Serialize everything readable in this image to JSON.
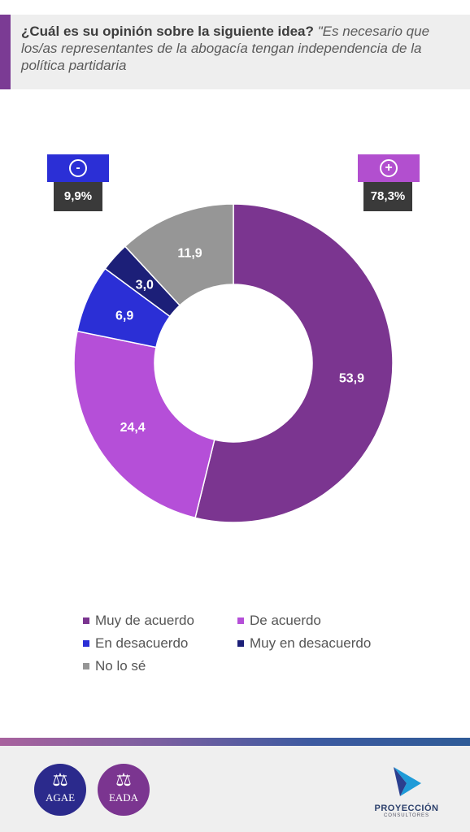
{
  "header": {
    "question": "¿Cuál es su opinión sobre la siguiente idea?",
    "idea": "\"Es necesario que los/as representantes de la abogacía tengan independencia de la política partidaria"
  },
  "badges": {
    "negative": {
      "symbol": "-",
      "value": "9,9%",
      "color": "#2b2fd6"
    },
    "positive": {
      "symbol": "+",
      "value": "78,3%",
      "color": "#b24fcf"
    }
  },
  "chart_data": {
    "type": "pie",
    "donut": true,
    "segments": [
      {
        "name": "Muy de acuerdo",
        "value": 53.9,
        "label": "53,9",
        "color": "#7b3590"
      },
      {
        "name": "De acuerdo",
        "value": 24.4,
        "label": "24,4",
        "color": "#b54fd8"
      },
      {
        "name": "En desacuerdo",
        "value": 6.9,
        "label": "6,9",
        "color": "#2b2fd6"
      },
      {
        "name": "Muy en desacuerdo",
        "value": 3.0,
        "label": "3,0",
        "color": "#1c1f78"
      },
      {
        "name": "No lo sé",
        "value": 11.9,
        "label": "11,9",
        "color": "#969696"
      }
    ],
    "legend": [
      {
        "name": "Muy de acuerdo",
        "color": "#7b3590"
      },
      {
        "name": "De acuerdo",
        "color": "#b54fd8"
      },
      {
        "name": "En desacuerdo",
        "color": "#2b2fd6"
      },
      {
        "name": "Muy en desacuerdo",
        "color": "#1c1f78"
      },
      {
        "name": "No lo sé",
        "color": "#969696"
      }
    ],
    "legend_position": "bottom"
  },
  "footer": {
    "logos": [
      {
        "abbr": "AGAE",
        "color": "#2b2a8c"
      },
      {
        "abbr": "EADA",
        "color": "#7b3590"
      }
    ],
    "brand": {
      "name": "PROYECCIÓN",
      "sub": "CONSULTORES"
    }
  }
}
